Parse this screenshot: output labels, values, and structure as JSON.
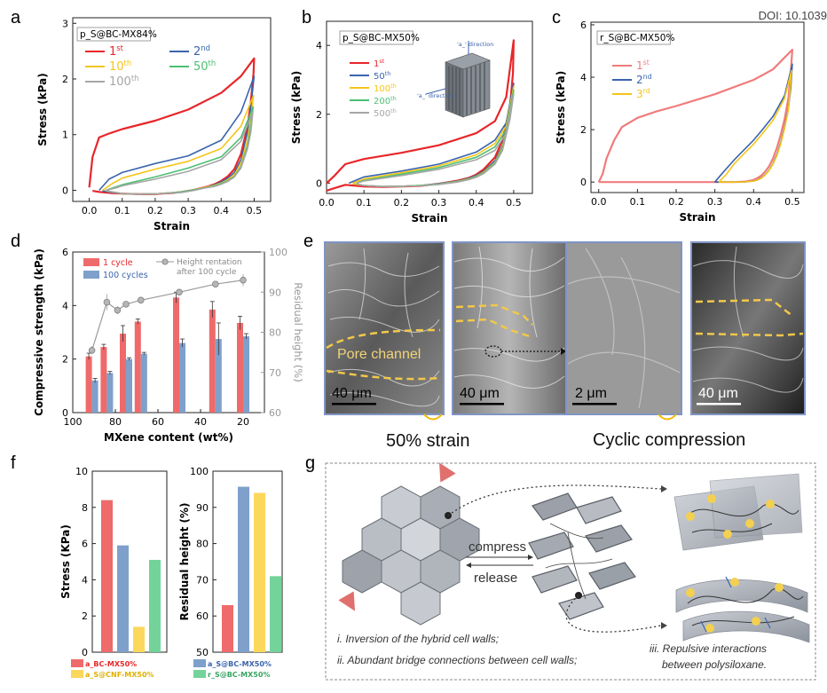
{
  "doi": "DOI: 10.1039",
  "panels": {
    "a": "a",
    "b": "b",
    "c": "c",
    "d": "d",
    "e": "e",
    "f": "f",
    "g": "g"
  },
  "colors": {
    "red": "#e8262a",
    "blue": "#3a64ad",
    "yellow": "#f5c518",
    "green": "#4cbf73",
    "grey": "#a6a6a6",
    "pink": "#f07b7b",
    "bar_red": "#ef6a6a",
    "bar_blue": "#7ea0cb",
    "bar_yellow": "#fbd75b",
    "bar_green": "#73d39a",
    "sem_border": "#7f95c6"
  },
  "chart_data": [
    {
      "id": "a",
      "type": "line",
      "title": "p_S@BC-MX84%",
      "xlabel": "Strain",
      "ylabel": "Stress (kPa)",
      "xlim": [
        -0.05,
        0.55
      ],
      "ylim": [
        -0.2,
        3.1
      ],
      "xticks": [
        "0.0",
        "0.1",
        "0.2",
        "0.3",
        "0.4",
        "0.5"
      ],
      "yticks": [
        "0",
        "1",
        "2",
        "3"
      ],
      "series": [
        {
          "name": "1st",
          "color": "#e8262a",
          "x": [
            0,
            0.01,
            0.03,
            0.06,
            0.1,
            0.2,
            0.3,
            0.4,
            0.46,
            0.5,
            0.498,
            0.49,
            0.48,
            0.46,
            0.44,
            0.42,
            0.4,
            0.38,
            0.36,
            0.34,
            0.32,
            0.3,
            0.28,
            0.25,
            0.22,
            0.2,
            0.15,
            0.1,
            0.07,
            0.05,
            0.03,
            0.01
          ],
          "y": [
            0.05,
            0.6,
            0.95,
            1.02,
            1.1,
            1.25,
            1.45,
            1.75,
            2.05,
            2.37,
            2.1,
            1.6,
            1.15,
            0.65,
            0.38,
            0.25,
            0.17,
            0.11,
            0.07,
            0.04,
            0.01,
            -0.01,
            -0.03,
            -0.05,
            -0.06,
            -0.07,
            -0.07,
            -0.06,
            -0.05,
            -0.04,
            -0.03,
            -0.01
          ]
        },
        {
          "name": "2nd",
          "color": "#3a64ad",
          "x": [
            0.03,
            0.06,
            0.1,
            0.2,
            0.3,
            0.4,
            0.46,
            0.5,
            0.49,
            0.48,
            0.46,
            0.44,
            0.42,
            0.4,
            0.38,
            0.35,
            0.32,
            0.28,
            0.22,
            0.15,
            0.1,
            0.06,
            0.04
          ],
          "y": [
            0,
            0.2,
            0.32,
            0.48,
            0.62,
            0.9,
            1.4,
            2.05,
            1.5,
            1.05,
            0.55,
            0.32,
            0.22,
            0.15,
            0.1,
            0.05,
            0.01,
            -0.03,
            -0.06,
            -0.07,
            -0.06,
            -0.03,
            -0.01
          ]
        },
        {
          "name": "10th",
          "color": "#f5c518",
          "x": [
            0.04,
            0.07,
            0.1,
            0.2,
            0.3,
            0.4,
            0.46,
            0.498,
            0.49,
            0.48,
            0.46,
            0.44,
            0.42,
            0.4,
            0.38,
            0.35,
            0.32,
            0.28,
            0.22,
            0.15,
            0.1,
            0.07,
            0.05
          ],
          "y": [
            0,
            0.12,
            0.22,
            0.38,
            0.52,
            0.75,
            1.15,
            1.7,
            1.3,
            0.9,
            0.48,
            0.28,
            0.19,
            0.13,
            0.09,
            0.05,
            0.01,
            -0.03,
            -0.06,
            -0.07,
            -0.06,
            -0.03,
            -0.01
          ]
        },
        {
          "name": "50th",
          "color": "#4cbf73",
          "x": [
            0.05,
            0.08,
            0.1,
            0.2,
            0.3,
            0.4,
            0.46,
            0.497,
            0.49,
            0.48,
            0.46,
            0.44,
            0.42,
            0.4,
            0.38,
            0.35,
            0.32,
            0.28,
            0.22,
            0.15,
            0.1,
            0.07,
            0.05
          ],
          "y": [
            0,
            0.06,
            0.1,
            0.24,
            0.4,
            0.6,
            0.95,
            1.5,
            1.15,
            0.8,
            0.42,
            0.25,
            0.17,
            0.12,
            0.08,
            0.04,
            0.01,
            -0.03,
            -0.06,
            -0.07,
            -0.06,
            -0.03,
            -0.01
          ]
        },
        {
          "name": "100th",
          "color": "#a6a6a6",
          "x": [
            0.05,
            0.08,
            0.1,
            0.2,
            0.3,
            0.4,
            0.46,
            0.496,
            0.49,
            0.48,
            0.46,
            0.44,
            0.42,
            0.4,
            0.38,
            0.35,
            0.32,
            0.28,
            0.22,
            0.15,
            0.1,
            0.07,
            0.05
          ],
          "y": [
            0,
            0.04,
            0.08,
            0.2,
            0.34,
            0.55,
            0.88,
            1.4,
            1.05,
            0.75,
            0.4,
            0.24,
            0.16,
            0.11,
            0.07,
            0.04,
            0,
            -0.04,
            -0.06,
            -0.07,
            -0.06,
            -0.03,
            -0.01
          ]
        }
      ]
    },
    {
      "id": "b",
      "type": "line",
      "title": "p_S@BC-MX50%",
      "xlabel": "Strain",
      "ylabel": "Stress (kPa)",
      "xlim": [
        0,
        0.55
      ],
      "ylim": [
        -0.3,
        4.7
      ],
      "xticks": [
        "0.0",
        "0.1",
        "0.2",
        "0.3",
        "0.4",
        "0.5"
      ],
      "yticks": [
        "0",
        "2",
        "4"
      ],
      "inset_labels": [
        "'a_' direction",
        "'a_' direction"
      ],
      "series": [
        {
          "name": "1st",
          "color": "#e8262a",
          "x": [
            0,
            0.02,
            0.05,
            0.1,
            0.2,
            0.3,
            0.4,
            0.45,
            0.48,
            0.5,
            0.498,
            0.49,
            0.47,
            0.45,
            0.42,
            0.4,
            0.38,
            0.35,
            0.3,
            0.25,
            0.2,
            0.15,
            0.1,
            0.05,
            0.02,
            0
          ],
          "y": [
            0,
            0.2,
            0.55,
            0.7,
            0.88,
            1.1,
            1.45,
            1.8,
            2.5,
            4.15,
            3.2,
            2.2,
            1.25,
            0.75,
            0.4,
            0.25,
            0.15,
            0.07,
            -0.02,
            -0.08,
            -0.1,
            -0.11,
            -0.1,
            -0.05,
            -0.15,
            -0.22
          ]
        },
        {
          "name": "50th",
          "color": "#3a64ad",
          "x": [
            0.06,
            0.1,
            0.2,
            0.3,
            0.4,
            0.45,
            0.48,
            0.5,
            0.49,
            0.47,
            0.45,
            0.42,
            0.4,
            0.38,
            0.35,
            0.3,
            0.25,
            0.2,
            0.15,
            0.1,
            0.07
          ],
          "y": [
            0,
            0.18,
            0.35,
            0.55,
            0.9,
            1.25,
            1.75,
            2.9,
            2.0,
            1.1,
            0.65,
            0.35,
            0.22,
            0.14,
            0.06,
            -0.02,
            -0.07,
            -0.09,
            -0.1,
            -0.07,
            -0.02
          ]
        },
        {
          "name": "100th",
          "color": "#f5c518",
          "x": [
            0.07,
            0.1,
            0.2,
            0.3,
            0.4,
            0.45,
            0.48,
            0.5,
            0.49,
            0.47,
            0.45,
            0.42,
            0.4,
            0.38,
            0.35,
            0.3,
            0.25,
            0.2,
            0.15,
            0.1,
            0.07
          ],
          "y": [
            0,
            0.12,
            0.3,
            0.5,
            0.82,
            1.15,
            1.65,
            2.8,
            1.95,
            1.05,
            0.6,
            0.32,
            0.2,
            0.12,
            0.05,
            -0.03,
            -0.07,
            -0.09,
            -0.1,
            -0.07,
            -0.02
          ]
        },
        {
          "name": "200th",
          "color": "#4cbf73",
          "x": [
            0.08,
            0.1,
            0.2,
            0.3,
            0.4,
            0.45,
            0.48,
            0.5,
            0.49,
            0.47,
            0.45,
            0.42,
            0.4,
            0.38,
            0.35,
            0.3,
            0.25,
            0.2,
            0.15,
            0.1,
            0.08
          ],
          "y": [
            0,
            0.08,
            0.26,
            0.45,
            0.75,
            1.05,
            1.55,
            2.7,
            1.9,
            1.0,
            0.58,
            0.3,
            0.19,
            0.11,
            0.04,
            -0.03,
            -0.07,
            -0.09,
            -0.1,
            -0.07,
            -0.02
          ]
        },
        {
          "name": "500th",
          "color": "#a6a6a6",
          "x": [
            0.08,
            0.1,
            0.2,
            0.3,
            0.4,
            0.45,
            0.48,
            0.5,
            0.49,
            0.47,
            0.45,
            0.42,
            0.4,
            0.38,
            0.35,
            0.3,
            0.25,
            0.2,
            0.15,
            0.1,
            0.08
          ],
          "y": [
            0,
            0.06,
            0.22,
            0.4,
            0.68,
            0.95,
            1.45,
            2.6,
            1.85,
            0.95,
            0.55,
            0.28,
            0.17,
            0.1,
            0.03,
            -0.04,
            -0.08,
            -0.09,
            -0.1,
            -0.07,
            -0.02
          ]
        }
      ]
    },
    {
      "id": "c",
      "type": "line",
      "title": "r_S@BC-MX50%",
      "xlabel": "Strain",
      "ylabel": "Stress (kPa)",
      "xlim": [
        -0.02,
        0.53
      ],
      "ylim": [
        -0.4,
        6.1
      ],
      "xticks": [
        "0.0",
        "0.1",
        "0.2",
        "0.3",
        "0.4",
        "0.5"
      ],
      "yticks": [
        "0",
        "2",
        "4",
        "6"
      ],
      "series": [
        {
          "name": "1st",
          "color": "#f07b7b",
          "x": [
            0,
            0.01,
            0.02,
            0.04,
            0.06,
            0.1,
            0.15,
            0.2,
            0.3,
            0.4,
            0.45,
            0.5,
            0.496,
            0.49,
            0.48,
            0.47,
            0.46,
            0.45,
            0.44,
            0.43,
            0.42,
            0.41,
            0.4,
            0.38,
            0.35,
            0.32,
            0.3,
            0.2,
            0.1,
            0
          ],
          "y": [
            0,
            0.3,
            0.9,
            1.6,
            2.1,
            2.45,
            2.7,
            2.9,
            3.35,
            3.9,
            4.3,
            5.05,
            4.2,
            3.2,
            2.4,
            1.8,
            1.3,
            0.9,
            0.6,
            0.4,
            0.25,
            0.15,
            0.08,
            0.02,
            0,
            0,
            0,
            0,
            0,
            0
          ]
        },
        {
          "name": "2nd",
          "color": "#3a64ad",
          "x": [
            0.3,
            0.32,
            0.35,
            0.38,
            0.4,
            0.42,
            0.45,
            0.48,
            0.5,
            0.496,
            0.49,
            0.48,
            0.47,
            0.46,
            0.45,
            0.44,
            0.43,
            0.42,
            0.41,
            0.4,
            0.38,
            0.35,
            0.32,
            0.3
          ],
          "y": [
            0,
            0.35,
            0.85,
            1.3,
            1.6,
            1.95,
            2.5,
            3.3,
            4.5,
            3.6,
            2.8,
            2.1,
            1.5,
            1.05,
            0.7,
            0.45,
            0.28,
            0.16,
            0.08,
            0.04,
            0.01,
            0,
            0,
            0
          ]
        },
        {
          "name": "3rd",
          "color": "#f5c518",
          "x": [
            0.31,
            0.33,
            0.35,
            0.38,
            0.4,
            0.42,
            0.45,
            0.48,
            0.498,
            0.494,
            0.49,
            0.48,
            0.47,
            0.46,
            0.45,
            0.44,
            0.43,
            0.42,
            0.41,
            0.4,
            0.38,
            0.35,
            0.32,
            0.31
          ],
          "y": [
            0,
            0.3,
            0.7,
            1.15,
            1.45,
            1.8,
            2.35,
            3.2,
            4.25,
            3.5,
            2.75,
            2.05,
            1.45,
            1.0,
            0.68,
            0.44,
            0.27,
            0.15,
            0.08,
            0.04,
            0.01,
            0,
            0,
            0
          ]
        }
      ]
    },
    {
      "id": "d",
      "type": "bar",
      "xlabel": "MXene content (wt%)",
      "ylabel": "Compressive strength (kPa)",
      "ylabel2": "Residual height (%)",
      "xlim": [
        100,
        10
      ],
      "ylim": [
        0,
        6
      ],
      "ylim2": [
        60,
        100
      ],
      "xticks": [
        "100",
        "80",
        "60",
        "40",
        "20"
      ],
      "yticks": [
        "0",
        "2",
        "4",
        "6"
      ],
      "yticks2": [
        "60",
        "70",
        "80",
        "90",
        "100"
      ],
      "legend_bars": [
        "1 cycle",
        "100 cycles"
      ],
      "legend_line": [
        "Height rentation",
        "after 100 cycle"
      ],
      "categories": [
        91,
        84,
        75,
        68,
        50,
        33,
        20
      ],
      "series": [
        {
          "name": "1 cycle",
          "color": "#ef6a6a",
          "values": [
            2.1,
            2.45,
            2.95,
            3.4,
            4.3,
            3.85,
            3.35
          ],
          "errors": [
            0.12,
            0.1,
            0.3,
            0.1,
            0.2,
            0.3,
            0.25
          ]
        },
        {
          "name": "100 cycles",
          "color": "#7ea0cb",
          "values": [
            1.2,
            1.48,
            2.0,
            2.2,
            2.6,
            2.75,
            2.85
          ],
          "errors": [
            0.08,
            0.06,
            0.05,
            0.05,
            0.15,
            0.6,
            0.1
          ]
        }
      ],
      "line": {
        "name": "Height rentation after 100 cycle",
        "x": [
          91,
          84,
          79,
          75,
          68,
          50,
          33,
          20
        ],
        "y": [
          75.5,
          87.5,
          85.5,
          87,
          88,
          90,
          92,
          93
        ],
        "errors": [
          1,
          2,
          1,
          0.5,
          0.5,
          0.8,
          0.8,
          1.5
        ]
      }
    },
    {
      "id": "f1",
      "type": "bar",
      "ylabel": "Stress (KPa)",
      "ylim": [
        0,
        10
      ],
      "yticks": [
        "0",
        "2",
        "4",
        "6",
        "8",
        "10"
      ],
      "categories": [
        "a_BC-MX50%",
        "a_S@BC-MX50%",
        "a_S@CNF-MX50%",
        "r_S@BC-MX50%"
      ],
      "values": [
        8.4,
        5.9,
        1.4,
        5.1
      ]
    },
    {
      "id": "f2",
      "type": "bar",
      "ylabel": "Residual height (%)",
      "ylim": [
        50,
        100
      ],
      "yticks": [
        "50",
        "60",
        "70",
        "80",
        "90",
        "100"
      ],
      "categories": [
        "a_BC-MX50%",
        "a_S@BC-MX50%",
        "a_S@CNF-MX50%",
        "r_S@BC-MX50%"
      ],
      "values": [
        63,
        95.7,
        94,
        71
      ]
    }
  ],
  "panel_e": {
    "pore_label": "Pore channel",
    "scale_bars": [
      "40 μm",
      "40 μm",
      "2 μm",
      "40 μm"
    ],
    "captions": [
      "50% strain",
      "Cyclic compression"
    ]
  },
  "panel_f_legend": [
    "a_BC-MX50%",
    "a_S@BC-MX50%",
    "a_S@CNF-MX50%",
    "r_S@BC-MX50%"
  ],
  "panel_g": {
    "compress": "compress",
    "release": "release",
    "notes": [
      "i. Inversion of the hybrid cell walls;",
      "ii. Abundant bridge connections between cell walls;",
      "iii. Repulsive interactions",
      "between polysiloxane."
    ]
  }
}
